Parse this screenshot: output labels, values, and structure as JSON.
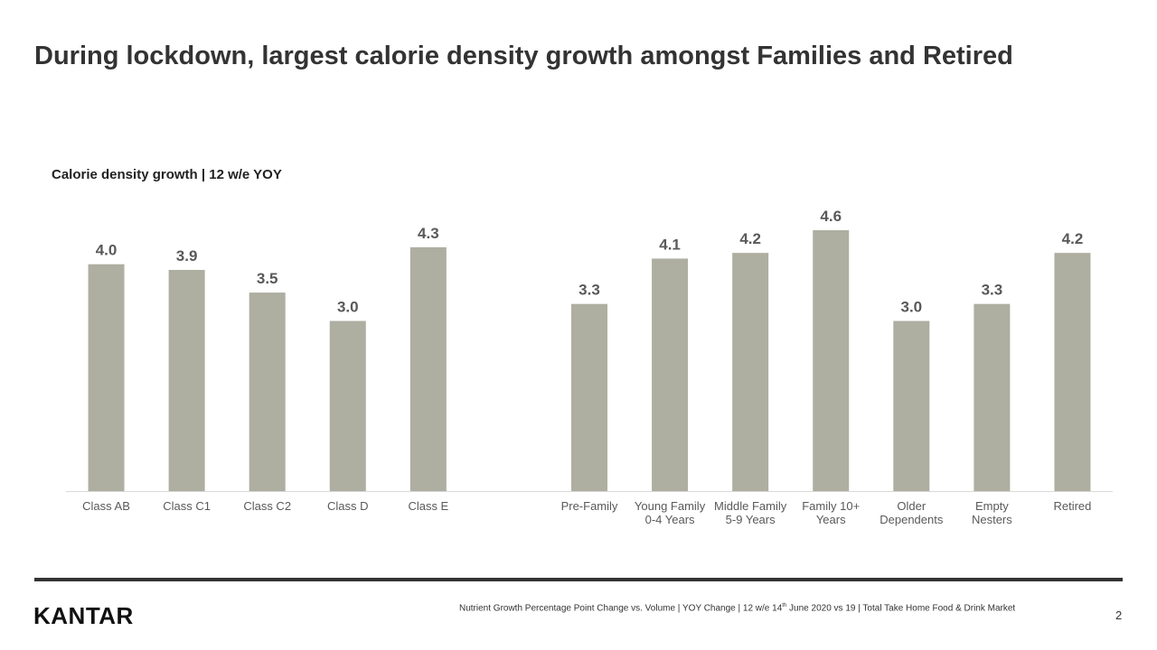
{
  "title": "During lockdown, largest calorie density growth amongst Families and Retired",
  "chart_data": {
    "type": "bar",
    "title": "Calorie density growth | 12 w/e YOY",
    "categories": [
      "Class AB",
      "Class C1",
      "Class C2",
      "Class D",
      "Class E",
      null,
      "Pre-Family",
      "Young Family 0-4 Years",
      "Middle Family 5-9 Years",
      "Family 10+ Years",
      "Older Dependents",
      "Empty Nesters",
      "Retired"
    ],
    "values": [
      4.0,
      3.9,
      3.5,
      3.0,
      4.3,
      null,
      3.3,
      4.1,
      4.2,
      4.6,
      3.0,
      3.3,
      4.2
    ],
    "value_labels": [
      "4.0",
      "3.9",
      "3.5",
      "3.0",
      "4.3",
      null,
      "3.3",
      "4.1",
      "4.2",
      "4.6",
      "3.0",
      "3.3",
      "4.2"
    ],
    "color": "#aeaea1"
  },
  "footer": {
    "logo": "KANTAR",
    "footnote_start": "Nutrient  Growth Percentage Point Change vs. Volume | YOY Change  | 12 w/e 14",
    "footnote_sup": "th",
    "footnote_end": " June 2020 vs 19 | Total Take Home  Food & Drink Market",
    "page_number": "2"
  }
}
